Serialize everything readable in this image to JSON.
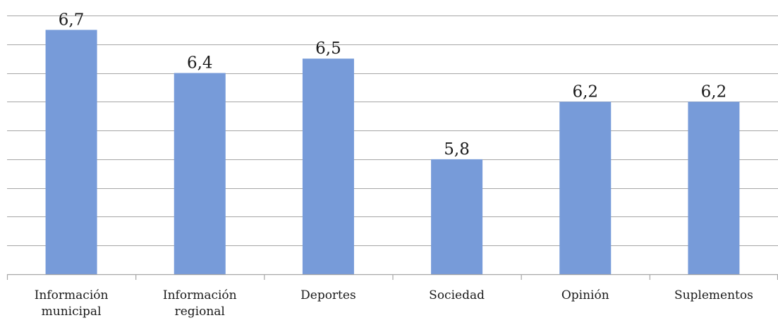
{
  "chart_data": {
    "type": "bar",
    "categories": [
      [
        "Información",
        "municipal"
      ],
      [
        "Información",
        "regional"
      ],
      [
        "Deportes"
      ],
      [
        "Sociedad"
      ],
      [
        "Opinión"
      ],
      [
        "Suplementos"
      ]
    ],
    "values": [
      6.7,
      6.4,
      6.5,
      5.8,
      6.2,
      6.2
    ],
    "value_labels": [
      "6,7",
      "6,4",
      "6,5",
      "5,8",
      "6,2",
      "6,2"
    ],
    "ylim": [
      5.0,
      6.8
    ],
    "y_grid_step": 0.2,
    "grid": true,
    "legend": "none",
    "title": "",
    "xlabel": "",
    "ylabel": "",
    "colors": {
      "bar": "#779bd9",
      "grid": "#a6a6a6",
      "text": "#1a1a1a"
    }
  }
}
